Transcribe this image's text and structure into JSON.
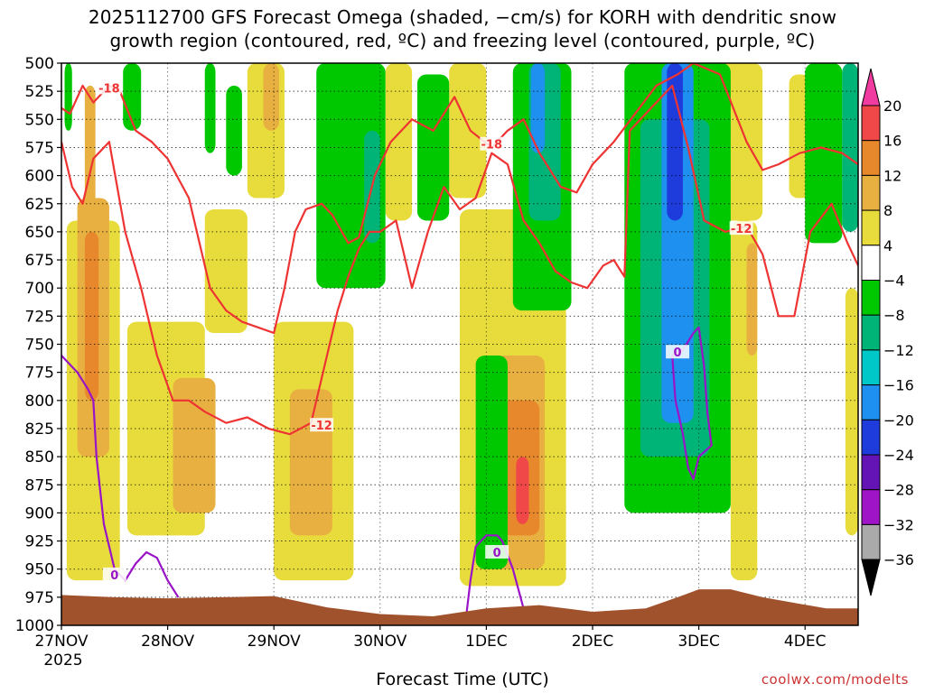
{
  "chart_data": {
    "type": "heatmap",
    "title": {
      "line1": "2025112700 GFS Forecast Omega (shaded, −cm/s) for KORH with dendritic snow",
      "line2": "growth region (contoured, red, ºC) and freezing level (contoured, purple, ºC)"
    },
    "xlabel": "Forecast Time (UTC)",
    "credit": "coolwx.com/modelts",
    "y_axis": {
      "unit": "hPa",
      "ylim": [
        1000,
        500
      ],
      "ticks": [
        500,
        525,
        550,
        575,
        600,
        625,
        650,
        675,
        700,
        725,
        750,
        775,
        800,
        825,
        850,
        875,
        900,
        925,
        950,
        975,
        1000
      ]
    },
    "x_axis": {
      "unit": "days since 27NOV 00Z",
      "xlim": [
        0,
        7.5
      ],
      "ticks": [
        {
          "x": 0,
          "label": "27NOV",
          "sub": "2025"
        },
        {
          "x": 1,
          "label": "28NOV",
          "sub": ""
        },
        {
          "x": 2,
          "label": "29NOV",
          "sub": ""
        },
        {
          "x": 3,
          "label": "30NOV",
          "sub": ""
        },
        {
          "x": 4,
          "label": "1DEC",
          "sub": ""
        },
        {
          "x": 5,
          "label": "2DEC",
          "sub": ""
        },
        {
          "x": 6,
          "label": "3DEC",
          "sub": ""
        },
        {
          "x": 7,
          "label": "4DEC",
          "sub": ""
        }
      ]
    },
    "grid": true,
    "colorbar": {
      "placement": "right",
      "labels": [
        "20",
        "16",
        "12",
        "8",
        "4",
        "−4",
        "−8",
        "−12",
        "−16",
        "−20",
        "−24",
        "−28",
        "−32",
        "−36"
      ],
      "colors": [
        "#f03ca0",
        "#f04848",
        "#e8882c",
        "#e8b040",
        "#e8dc3c",
        "#ffffff",
        "#00c800",
        "#00b478",
        "#00c8c8",
        "#1e90f0",
        "#1e3cdc",
        "#6414b4",
        "#a014c8",
        "#aaaaaa",
        "#000000"
      ]
    },
    "shading": [
      {
        "x": [
          0.05,
          0.55
        ],
        "p": [
          640,
          960
        ],
        "level": 4,
        "color": "#e8dc3c"
      },
      {
        "x": [
          0.15,
          0.45
        ],
        "p": [
          620,
          850
        ],
        "level": 8,
        "color": "#e8b040"
      },
      {
        "x": [
          0.22,
          0.35
        ],
        "p": [
          650,
          800
        ],
        "level": 12,
        "color": "#e8882c"
      },
      {
        "x": [
          0.22,
          0.32
        ],
        "p": [
          520,
          640
        ],
        "level": 8,
        "color": "#e8b040"
      },
      {
        "x": [
          0.62,
          1.35
        ],
        "p": [
          730,
          920
        ],
        "level": 4,
        "color": "#e8dc3c"
      },
      {
        "x": [
          1.05,
          1.45
        ],
        "p": [
          780,
          900
        ],
        "level": 8,
        "color": "#e8b040"
      },
      {
        "x": [
          1.35,
          1.75
        ],
        "p": [
          630,
          740
        ],
        "level": 4,
        "color": "#e8dc3c"
      },
      {
        "x": [
          1.75,
          2.1
        ],
        "p": [
          500,
          620
        ],
        "level": 4,
        "color": "#e8dc3c"
      },
      {
        "x": [
          1.9,
          2.05
        ],
        "p": [
          500,
          560
        ],
        "level": 8,
        "color": "#e8b040"
      },
      {
        "x": [
          2.0,
          2.75
        ],
        "p": [
          730,
          960
        ],
        "level": 4,
        "color": "#e8dc3c"
      },
      {
        "x": [
          2.15,
          2.55
        ],
        "p": [
          790,
          920
        ],
        "level": 8,
        "color": "#e8b040"
      },
      {
        "x": [
          2.55,
          2.75
        ],
        "p": [
          510,
          650
        ],
        "level": 4,
        "color": "#e8dc3c"
      },
      {
        "x": [
          3.05,
          3.3
        ],
        "p": [
          500,
          640
        ],
        "level": 4,
        "color": "#e8dc3c"
      },
      {
        "x": [
          3.65,
          4.0
        ],
        "p": [
          500,
          620
        ],
        "level": 4,
        "color": "#e8dc3c"
      },
      {
        "x": [
          3.75,
          4.75
        ],
        "p": [
          630,
          965
        ],
        "level": 4,
        "color": "#e8dc3c"
      },
      {
        "x": [
          3.95,
          4.55
        ],
        "p": [
          760,
          950
        ],
        "level": 8,
        "color": "#e8b040"
      },
      {
        "x": [
          4.15,
          4.5
        ],
        "p": [
          800,
          920
        ],
        "level": 12,
        "color": "#e8882c"
      },
      {
        "x": [
          4.28,
          4.4
        ],
        "p": [
          850,
          910
        ],
        "level": 16,
        "color": "#f04848"
      },
      {
        "x": [
          5.9,
          6.6
        ],
        "p": [
          500,
          640
        ],
        "level": 4,
        "color": "#e8dc3c"
      },
      {
        "x": [
          6.1,
          6.3
        ],
        "p": [
          510,
          570
        ],
        "level": 8,
        "color": "#e8b040"
      },
      {
        "x": [
          6.3,
          6.55
        ],
        "p": [
          640,
          960
        ],
        "level": 4,
        "color": "#e8dc3c"
      },
      {
        "x": [
          6.45,
          6.55
        ],
        "p": [
          660,
          760
        ],
        "level": 8,
        "color": "#e8b040"
      },
      {
        "x": [
          6.85,
          7.05
        ],
        "p": [
          510,
          620
        ],
        "level": 4,
        "color": "#e8dc3c"
      },
      {
        "x": [
          7.38,
          7.5
        ],
        "p": [
          700,
          920
        ],
        "level": 4,
        "color": "#e8dc3c"
      },
      {
        "x": [
          0.03,
          0.1
        ],
        "p": [
          500,
          560
        ],
        "level": -8,
        "color": "#00c800"
      },
      {
        "x": [
          0.58,
          0.75
        ],
        "p": [
          500,
          560
        ],
        "level": -8,
        "color": "#00c800"
      },
      {
        "x": [
          1.35,
          1.45
        ],
        "p": [
          500,
          580
        ],
        "level": -8,
        "color": "#00c800"
      },
      {
        "x": [
          1.55,
          1.7
        ],
        "p": [
          520,
          600
        ],
        "level": -8,
        "color": "#00c800"
      },
      {
        "x": [
          2.4,
          3.05
        ],
        "p": [
          500,
          700
        ],
        "level": -8,
        "color": "#00c800"
      },
      {
        "x": [
          2.85,
          3.0
        ],
        "p": [
          560,
          660
        ],
        "level": -12,
        "color": "#00b478"
      },
      {
        "x": [
          3.35,
          3.65
        ],
        "p": [
          510,
          640
        ],
        "level": -8,
        "color": "#00c800"
      },
      {
        "x": [
          3.9,
          4.2
        ],
        "p": [
          760,
          950
        ],
        "level": -8,
        "color": "#00c800"
      },
      {
        "x": [
          4.25,
          4.8
        ],
        "p": [
          500,
          720
        ],
        "level": -8,
        "color": "#00c800"
      },
      {
        "x": [
          4.4,
          4.7
        ],
        "p": [
          500,
          640
        ],
        "level": -12,
        "color": "#00b478"
      },
      {
        "x": [
          4.42,
          4.55
        ],
        "p": [
          500,
          580
        ],
        "level": -16,
        "color": "#1e90f0"
      },
      {
        "x": [
          5.3,
          6.3
        ],
        "p": [
          500,
          900
        ],
        "level": -8,
        "color": "#00c800"
      },
      {
        "x": [
          5.45,
          6.1
        ],
        "p": [
          550,
          850
        ],
        "level": -12,
        "color": "#00b478"
      },
      {
        "x": [
          5.65,
          5.95
        ],
        "p": [
          500,
          820
        ],
        "level": -16,
        "color": "#1e90f0"
      },
      {
        "x": [
          5.7,
          5.85
        ],
        "p": [
          500,
          640
        ],
        "level": -20,
        "color": "#1e3cdc"
      },
      {
        "x": [
          7.0,
          7.35
        ],
        "p": [
          500,
          660
        ],
        "level": -8,
        "color": "#00c800"
      },
      {
        "x": [
          7.35,
          7.5
        ],
        "p": [
          500,
          650
        ],
        "level": -12,
        "color": "#00b478"
      }
    ],
    "contours": [
      {
        "name": "-18",
        "color": "#ee3333",
        "label_x": 0.45,
        "label_p": 522,
        "x": [
          0,
          0.08,
          0.2,
          0.3,
          0.45,
          0.55,
          0.7,
          0.85,
          1.0,
          1.2,
          1.4,
          1.55,
          1.7,
          1.85,
          2.0,
          2.1,
          2.2,
          2.3,
          2.45,
          2.55,
          2.7,
          2.8
        ],
        "p": [
          540,
          545,
          520,
          535,
          520,
          525,
          560,
          570,
          585,
          620,
          700,
          720,
          730,
          735,
          740,
          700,
          650,
          630,
          625,
          635,
          660,
          655
        ]
      },
      {
        "name": "-18",
        "color": "#ee3333",
        "label_x": 4.05,
        "label_p": 572,
        "x": [
          2.8,
          2.95,
          3.1,
          3.3,
          3.5,
          3.7,
          3.85,
          4.05,
          4.2,
          4.35,
          4.5,
          4.7,
          4.85,
          5.0,
          5.2,
          5.4,
          5.6,
          5.8,
          5.95,
          6.2,
          6.45,
          6.6,
          6.75,
          6.95,
          7.15,
          7.35,
          7.5
        ],
        "p": [
          655,
          600,
          570,
          550,
          560,
          530,
          560,
          575,
          560,
          550,
          580,
          610,
          615,
          590,
          570,
          545,
          520,
          510,
          500,
          510,
          570,
          595,
          590,
          580,
          575,
          580,
          590
        ]
      },
      {
        "name": "-12",
        "color": "#ee3333",
        "label_x": 2.45,
        "label_p": 822,
        "x": [
          0,
          0.1,
          0.2,
          0.3,
          0.45,
          0.6,
          0.75,
          0.9,
          1.05,
          1.2,
          1.35,
          1.55,
          1.75,
          1.95,
          2.15,
          2.35,
          2.5,
          2.6,
          2.7,
          2.8,
          2.9,
          3.0,
          3.15,
          3.3,
          3.45,
          3.6,
          3.75,
          3.9,
          4.05,
          4.2,
          4.35,
          4.5,
          4.65,
          4.8,
          4.95,
          5.1,
          5.2,
          5.3,
          5.35
        ],
        "p": [
          570,
          610,
          625,
          585,
          570,
          650,
          700,
          760,
          800,
          800,
          810,
          820,
          815,
          825,
          830,
          820,
          760,
          720,
          690,
          665,
          650,
          650,
          640,
          700,
          650,
          610,
          630,
          620,
          580,
          590,
          640,
          660,
          685,
          695,
          700,
          680,
          675,
          690,
          560
        ]
      },
      {
        "name": "-12",
        "color": "#ee3333",
        "label_x": 6.4,
        "label_p": 647,
        "x": [
          5.35,
          5.55,
          5.75,
          5.9,
          6.05,
          6.25,
          6.45,
          6.6,
          6.75,
          6.9,
          7.05,
          7.25,
          7.4,
          7.5
        ],
        "p": [
          560,
          540,
          520,
          575,
          640,
          650,
          645,
          670,
          725,
          725,
          650,
          625,
          660,
          680
        ]
      },
      {
        "name": "0",
        "color": "#9914c8",
        "label_x": 0.5,
        "label_p": 955,
        "x": [
          0,
          0.15,
          0.25,
          0.3,
          0.33,
          0.4,
          0.5,
          0.6,
          0.7,
          0.8,
          0.9,
          1.0,
          1.1
        ],
        "p": [
          760,
          775,
          790,
          800,
          850,
          910,
          950,
          960,
          945,
          935,
          940,
          960,
          975
        ]
      },
      {
        "name": "0",
        "color": "#9914c8",
        "label_x": 4.1,
        "label_p": 935,
        "x": [
          3.8,
          3.85,
          3.9,
          4.0,
          4.1,
          4.15,
          4.25,
          4.35,
          4.45
        ],
        "p": [
          1000,
          960,
          930,
          920,
          920,
          925,
          950,
          985,
          1000
        ]
      },
      {
        "name": "0",
        "color": "#9914c8",
        "label_x": 5.8,
        "label_p": 757,
        "x": [
          5.75,
          5.85,
          5.95,
          6.0,
          6.05,
          6.08,
          6.12,
          6.0,
          5.95,
          5.9,
          5.85,
          5.78,
          5.75
        ],
        "p": [
          760,
          755,
          740,
          735,
          770,
          810,
          840,
          850,
          870,
          860,
          830,
          800,
          760
        ]
      }
    ],
    "terrain": {
      "color": "#a0522d",
      "x": [
        0,
        0.5,
        1.0,
        1.5,
        2.0,
        2.5,
        3.0,
        3.5,
        4.0,
        4.5,
        5.0,
        5.5,
        5.8,
        6.0,
        6.3,
        6.6,
        6.9,
        7.2,
        7.5
      ],
      "p": [
        973,
        975,
        976,
        975,
        974,
        984,
        990,
        992,
        985,
        982,
        988,
        985,
        975,
        968,
        968,
        975,
        980,
        985,
        985
      ]
    }
  }
}
